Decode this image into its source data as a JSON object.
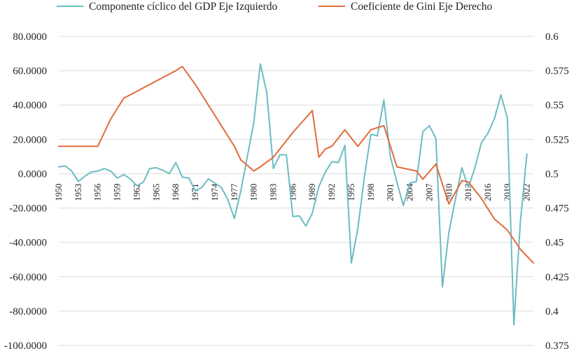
{
  "chart_data": {
    "type": "line",
    "title": "",
    "legend_position": "top",
    "x": [
      1950,
      1951,
      1952,
      1953,
      1954,
      1955,
      1956,
      1957,
      1958,
      1959,
      1960,
      1961,
      1962,
      1963,
      1964,
      1965,
      1966,
      1967,
      1968,
      1969,
      1970,
      1971,
      1972,
      1973,
      1974,
      1975,
      1976,
      1977,
      1978,
      1979,
      1980,
      1981,
      1982,
      1983,
      1984,
      1985,
      1986,
      1987,
      1988,
      1989,
      1990,
      1991,
      1992,
      1993,
      1994,
      1995,
      1996,
      1997,
      1998,
      1999,
      2000,
      2001,
      2002,
      2003,
      2004,
      2005,
      2006,
      2007,
      2008,
      2009,
      2010,
      2011,
      2012,
      2013,
      2014,
      2015,
      2016,
      2017,
      2018,
      2019,
      2020,
      2021,
      2022,
      2023
    ],
    "x_tick_labels": [
      "1950",
      "1953",
      "1956",
      "1959",
      "1962",
      "1965",
      "1968",
      "1971",
      "1974",
      "1977",
      "1980",
      "1983",
      "1986",
      "1989",
      "1992",
      "1995",
      "1998",
      "2001",
      "2004",
      "2007",
      "2010",
      "2013",
      "2016",
      "2019",
      "2022"
    ],
    "y_left": {
      "ticks": [
        "80.0000",
        "60.0000",
        "40.0000",
        "20.0000",
        "0.0000",
        "-20.0000",
        "-40.0000",
        "-60.0000",
        "-80.0000",
        "-100.0000"
      ],
      "range": [
        -100,
        80
      ]
    },
    "y_right": {
      "ticks": [
        "0.6",
        "0.575",
        "0.55",
        "0.525",
        "0.5",
        "0.475",
        "0.45",
        "0.425",
        "0.4",
        "0.375"
      ],
      "range": [
        0.375,
        0.6
      ]
    },
    "series": [
      {
        "name": "Componente cíclico del GDP Eje Izquierdo",
        "axis": "left",
        "color": "#6bbcc3",
        "x": [
          1950,
          1951,
          1952,
          1953,
          1954,
          1955,
          1956,
          1957,
          1958,
          1959,
          1960,
          1961,
          1962,
          1963,
          1964,
          1965,
          1966,
          1967,
          1968,
          1969,
          1970,
          1971,
          1972,
          1973,
          1974,
          1975,
          1976,
          1977,
          1978,
          1979,
          1980,
          1981,
          1982,
          1983,
          1984,
          1985,
          1986,
          1987,
          1988,
          1989,
          1990,
          1991,
          1992,
          1993,
          1994,
          1995,
          1996,
          1997,
          1998,
          1999,
          2000,
          2001,
          2002,
          2003,
          2004,
          2005,
          2006,
          2007,
          2008,
          2009,
          2010,
          2011,
          2012,
          2013,
          2014,
          2015,
          2016,
          2017,
          2018,
          2019,
          2020,
          2021,
          2022
        ],
        "values": [
          4,
          4.5,
          1.5,
          -4.5,
          -1.5,
          1,
          1.5,
          3,
          1.5,
          -2.5,
          -0.5,
          -3,
          -7,
          -5,
          3,
          3.5,
          2,
          0,
          6.5,
          -2,
          -2.5,
          -10,
          -8,
          -3,
          -5.5,
          -8,
          -15,
          -26,
          -10,
          10,
          30,
          64,
          47,
          3,
          11,
          11,
          -25,
          -24.5,
          -30.5,
          -23,
          -7.5,
          1,
          7,
          6.5,
          16.5,
          -52,
          -32,
          -2,
          23,
          22,
          43,
          10,
          -5,
          -18.5,
          -5.5,
          -4.5,
          24.5,
          28,
          20.5,
          -66,
          -34,
          -15,
          3.5,
          -8,
          3.5,
          18,
          23.5,
          32,
          46,
          32.5,
          -88,
          -28,
          11.5
        ]
      },
      {
        "name": "Coeficiente de Gini Eje Derecho",
        "axis": "right",
        "color": "#e26b3b",
        "x": [
          1950,
          1953,
          1956,
          1957,
          1958,
          1960,
          1962,
          1964,
          1966,
          1968,
          1969,
          1971,
          1973,
          1975,
          1977,
          1978,
          1980,
          1981,
          1983,
          1986,
          1989,
          1990,
          1991,
          1992,
          1994,
          1996,
          1998,
          2000,
          2002,
          2005,
          2006,
          2008,
          2010,
          2012,
          2013,
          2015,
          2017,
          2019,
          2021,
          2022,
          2023
        ],
        "values": [
          0.52,
          0.52,
          0.52,
          0.53,
          0.54,
          0.555,
          0.56,
          0.565,
          0.57,
          0.575,
          0.578,
          0.565,
          0.55,
          0.535,
          0.52,
          0.51,
          0.502,
          0.505,
          0.512,
          0.53,
          0.546,
          0.512,
          0.518,
          0.52,
          0.532,
          0.52,
          0.532,
          0.535,
          0.505,
          0.502,
          0.496,
          0.507,
          0.478,
          0.495,
          0.494,
          0.482,
          0.467,
          0.459,
          0.445,
          0.44,
          0.435
        ]
      }
    ]
  }
}
